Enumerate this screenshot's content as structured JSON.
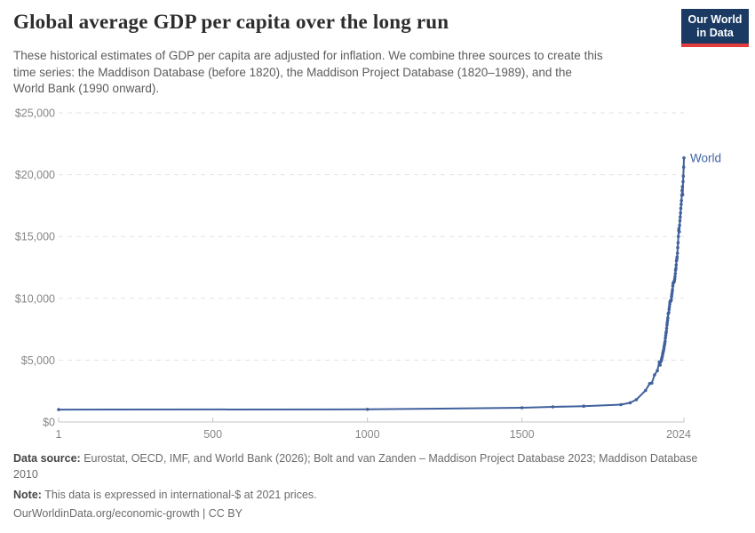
{
  "header": {
    "title": "Global average GDP per capita over the long run",
    "subtitle_lines": [
      "These historical estimates of GDP per capita are adjusted for inflation. We combine three sources to create this",
      "time series: the Maddison Database (before 1820), the Maddison Project Database (1820–1989), and the",
      "World Bank (1990 onward)."
    ],
    "logo": {
      "line1": "Our World",
      "line2": "in Data",
      "bg_color": "#1a3a63",
      "accent_color": "#e23d3d"
    }
  },
  "chart_data": {
    "type": "line",
    "title": "Global average GDP per capita over the long run",
    "xlabel": "",
    "ylabel": "",
    "xlim": [
      1,
      2024
    ],
    "ylim": [
      0,
      25000
    ],
    "grid": "horizontal-dashed",
    "legend_position": "end-of-line-label",
    "x_ticks": [
      1,
      500,
      1000,
      1500,
      2024
    ],
    "x_tick_labels": [
      "1",
      "500",
      "1000",
      "1500",
      "2024"
    ],
    "y_ticks": [
      0,
      5000,
      10000,
      15000,
      20000,
      25000
    ],
    "y_tick_labels": [
      "$0",
      "$5,000",
      "$10,000",
      "$15,000",
      "$20,000",
      "$25,000"
    ],
    "colors": {
      "line": "#41619d",
      "grid": "#e2e2e2",
      "axis": "#c4c4c4",
      "tick_text": "#868686"
    },
    "series": [
      {
        "name": "World",
        "color": "#41619d",
        "x": [
          1,
          1000,
          1500,
          1600,
          1700,
          1820,
          1850,
          1870,
          1900,
          1913,
          1920,
          1929,
          1938,
          1944,
          1947,
          1950,
          1951,
          1952,
          1953,
          1954,
          1955,
          1956,
          1957,
          1958,
          1959,
          1960,
          1961,
          1962,
          1963,
          1964,
          1965,
          1966,
          1967,
          1968,
          1969,
          1970,
          1971,
          1972,
          1973,
          1974,
          1975,
          1976,
          1977,
          1978,
          1979,
          1980,
          1981,
          1982,
          1983,
          1984,
          1985,
          1986,
          1987,
          1988,
          1989,
          1990,
          1991,
          1992,
          1993,
          1994,
          1995,
          1996,
          1997,
          1998,
          1999,
          2000,
          2001,
          2002,
          2003,
          2004,
          2005,
          2006,
          2007,
          2008,
          2009,
          2010,
          2011,
          2012,
          2013,
          2014,
          2015,
          2016,
          2017,
          2018,
          2019,
          2020,
          2021,
          2022,
          2023,
          2024
        ],
        "y": [
          1000,
          1020,
          1150,
          1220,
          1280,
          1400,
          1550,
          1800,
          2550,
          3100,
          3150,
          3800,
          4150,
          4850,
          4600,
          4900,
          5000,
          5100,
          5220,
          5280,
          5450,
          5580,
          5680,
          5780,
          5920,
          6100,
          6220,
          6370,
          6520,
          6780,
          6980,
          7180,
          7330,
          7580,
          7830,
          8030,
          8230,
          8430,
          8750,
          8800,
          8850,
          9100,
          9300,
          9520,
          9700,
          9760,
          9810,
          9800,
          9900,
          10150,
          10330,
          10500,
          10700,
          11000,
          11200,
          11280,
          11300,
          11330,
          11400,
          11550,
          11750,
          12000,
          12280,
          12430,
          12700,
          13030,
          13180,
          13350,
          13650,
          14100,
          14500,
          15000,
          15480,
          15640,
          15380,
          15900,
          16280,
          16580,
          16900,
          17280,
          17600,
          17900,
          18330,
          18720,
          19020,
          18380,
          19430,
          19880,
          20600,
          21350
        ]
      }
    ]
  },
  "footer": {
    "source_label": "Data source:",
    "source_lines": [
      " Eurostat, OECD, IMF, and World Bank (2026); Bolt and van Zanden – Maddison Project Database 2023; Maddison Database",
      "2010"
    ],
    "note_label": "Note:",
    "note_text": " This data is expressed in international-$ at 2021 prices.",
    "url_text": "OurWorldinData.org/economic-growth | CC BY"
  }
}
